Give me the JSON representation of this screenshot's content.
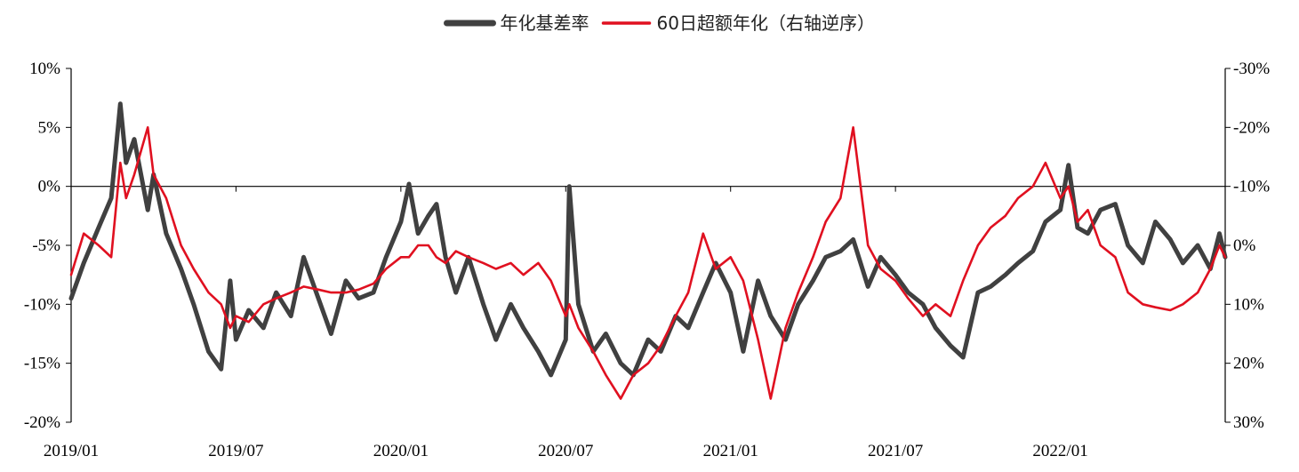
{
  "chart_data": {
    "type": "line",
    "title": "",
    "xlabel": "",
    "ylabel": "",
    "legend": {
      "position": "top-center",
      "entries": [
        "年化基差率",
        "60日超额年化（右轴逆序）"
      ]
    },
    "x_ticks": [
      "2019/01",
      "2019/07",
      "2020/01",
      "2020/07",
      "2021/01",
      "2021/07",
      "2022/01"
    ],
    "y_left": {
      "ticks": [
        "10%",
        "5%",
        "0%",
        "-5%",
        "-10%",
        "-15%",
        "-20%"
      ],
      "min": -20,
      "max": 10,
      "unit": "%"
    },
    "y_right": {
      "ticks": [
        "-30%",
        "-20%",
        "-10%",
        "0%",
        "10%",
        "20%",
        "30%"
      ],
      "min": -30,
      "max": 30,
      "inverted": true,
      "unit": "%"
    },
    "grid": false,
    "series": [
      {
        "name": "年化基差率",
        "axis": "left",
        "color": "#404040",
        "points": [
          [
            "2019/01",
            -9.5
          ],
          [
            "2019/01/15",
            -6.5
          ],
          [
            "2019/02",
            -3.5
          ],
          [
            "2019/02/15",
            -1.0
          ],
          [
            "2019/02/25",
            7.0
          ],
          [
            "2019/03",
            2.0
          ],
          [
            "2019/03/10",
            4.0
          ],
          [
            "2019/03/25",
            -2.0
          ],
          [
            "2019/04",
            1.0
          ],
          [
            "2019/04/15",
            -4.0
          ],
          [
            "2019/05",
            -7.0
          ],
          [
            "2019/05/15",
            -10.0
          ],
          [
            "2019/06",
            -14.0
          ],
          [
            "2019/06/15",
            -15.5
          ],
          [
            "2019/06/25",
            -8.0
          ],
          [
            "2019/07",
            -13.0
          ],
          [
            "2019/07/15",
            -10.5
          ],
          [
            "2019/08",
            -12.0
          ],
          [
            "2019/08/15",
            -9.0
          ],
          [
            "2019/09",
            -11.0
          ],
          [
            "2019/09/15",
            -6.0
          ],
          [
            "2019/10",
            -9.5
          ],
          [
            "2019/10/15",
            -12.5
          ],
          [
            "2019/11",
            -8.0
          ],
          [
            "2019/11/15",
            -9.5
          ],
          [
            "2019/12",
            -9.0
          ],
          [
            "2019/12/15",
            -6.0
          ],
          [
            "2020/01",
            -3.0
          ],
          [
            "2020/01/10",
            0.2
          ],
          [
            "2020/01/20",
            -4.0
          ],
          [
            "2020/02",
            -2.5
          ],
          [
            "2020/02/10",
            -1.5
          ],
          [
            "2020/02/20",
            -6.0
          ],
          [
            "2020/03",
            -9.0
          ],
          [
            "2020/03/15",
            -6.0
          ],
          [
            "2020/04",
            -10.0
          ],
          [
            "2020/04/15",
            -13.0
          ],
          [
            "2020/05",
            -10.0
          ],
          [
            "2020/05/15",
            -12.0
          ],
          [
            "2020/06",
            -14.0
          ],
          [
            "2020/06/15",
            -16.0
          ],
          [
            "2020/07",
            -13.0
          ],
          [
            "2020/07/05",
            0.0
          ],
          [
            "2020/07/15",
            -10.0
          ],
          [
            "2020/08",
            -14.0
          ],
          [
            "2020/08/15",
            -12.5
          ],
          [
            "2020/09",
            -15.0
          ],
          [
            "2020/09/15",
            -16.0
          ],
          [
            "2020/10",
            -13.0
          ],
          [
            "2020/10/15",
            -14.0
          ],
          [
            "2020/11",
            -11.0
          ],
          [
            "2020/11/15",
            -12.0
          ],
          [
            "2020/12",
            -9.0
          ],
          [
            "2020/12/15",
            -6.5
          ],
          [
            "2021/01",
            -9.0
          ],
          [
            "2021/01/15",
            -14.0
          ],
          [
            "2021/02",
            -8.0
          ],
          [
            "2021/02/15",
            -11.0
          ],
          [
            "2021/03",
            -13.0
          ],
          [
            "2021/03/15",
            -10.0
          ],
          [
            "2021/04",
            -8.0
          ],
          [
            "2021/04/15",
            -6.0
          ],
          [
            "2021/05",
            -5.5
          ],
          [
            "2021/05/15",
            -4.5
          ],
          [
            "2021/06",
            -8.5
          ],
          [
            "2021/06/15",
            -6.0
          ],
          [
            "2021/07",
            -7.5
          ],
          [
            "2021/07/15",
            -9.0
          ],
          [
            "2021/08",
            -10.0
          ],
          [
            "2021/08/15",
            -12.0
          ],
          [
            "2021/09",
            -13.5
          ],
          [
            "2021/09/15",
            -14.5
          ],
          [
            "2021/10",
            -9.0
          ],
          [
            "2021/10/15",
            -8.5
          ],
          [
            "2021/11",
            -7.5
          ],
          [
            "2021/11/15",
            -6.5
          ],
          [
            "2021/12",
            -5.5
          ],
          [
            "2021/12/15",
            -3.0
          ],
          [
            "2022/01",
            -2.0
          ],
          [
            "2022/01/10",
            1.8
          ],
          [
            "2022/01/20",
            -3.5
          ],
          [
            "2022/02",
            -4.0
          ],
          [
            "2022/02/15",
            -2.0
          ],
          [
            "2022/03",
            -1.5
          ],
          [
            "2022/03/15",
            -5.0
          ],
          [
            "2022/04",
            -6.5
          ],
          [
            "2022/04/15",
            -3.0
          ],
          [
            "2022/05",
            -4.5
          ],
          [
            "2022/05/15",
            -6.5
          ],
          [
            "2022/06",
            -5.0
          ],
          [
            "2022/06/15",
            -7.0
          ],
          [
            "2022/06/25",
            -4.0
          ],
          [
            "2022/07",
            -6.0
          ]
        ]
      },
      {
        "name": "60日超额年化（右轴逆序）",
        "axis": "right",
        "color": "#e01020",
        "points": [
          [
            "2019/01",
            5.0
          ],
          [
            "2019/01/15",
            -2.0
          ],
          [
            "2019/02",
            0.0
          ],
          [
            "2019/02/15",
            2.0
          ],
          [
            "2019/02/25",
            -14.0
          ],
          [
            "2019/03",
            -8.0
          ],
          [
            "2019/03/10",
            -12.0
          ],
          [
            "2019/03/25",
            -20.0
          ],
          [
            "2019/04",
            -12.0
          ],
          [
            "2019/04/15",
            -8.0
          ],
          [
            "2019/05",
            0.0
          ],
          [
            "2019/05/15",
            4.0
          ],
          [
            "2019/06",
            8.0
          ],
          [
            "2019/06/15",
            10.0
          ],
          [
            "2019/06/25",
            14.0
          ],
          [
            "2019/07",
            12.0
          ],
          [
            "2019/07/15",
            13.0
          ],
          [
            "2019/08",
            10.0
          ],
          [
            "2019/08/15",
            9.0
          ],
          [
            "2019/09",
            8.0
          ],
          [
            "2019/09/15",
            7.0
          ],
          [
            "2019/10",
            7.5
          ],
          [
            "2019/10/15",
            8.0
          ],
          [
            "2019/11",
            8.0
          ],
          [
            "2019/11/15",
            7.5
          ],
          [
            "2019/12",
            6.5
          ],
          [
            "2019/12/15",
            4.0
          ],
          [
            "2020/01",
            2.0
          ],
          [
            "2020/01/10",
            2.0
          ],
          [
            "2020/01/20",
            0.0
          ],
          [
            "2020/02",
            0.0
          ],
          [
            "2020/02/10",
            2.0
          ],
          [
            "2020/02/20",
            3.0
          ],
          [
            "2020/03",
            1.0
          ],
          [
            "2020/03/15",
            2.0
          ],
          [
            "2020/04",
            3.0
          ],
          [
            "2020/04/15",
            4.0
          ],
          [
            "2020/05",
            3.0
          ],
          [
            "2020/05/15",
            5.0
          ],
          [
            "2020/06",
            3.0
          ],
          [
            "2020/06/15",
            6.0
          ],
          [
            "2020/07",
            12.0
          ],
          [
            "2020/07/05",
            10.0
          ],
          [
            "2020/07/15",
            14.0
          ],
          [
            "2020/08",
            18.0
          ],
          [
            "2020/08/15",
            22.0
          ],
          [
            "2020/09",
            26.0
          ],
          [
            "2020/09/15",
            22.0
          ],
          [
            "2020/10",
            20.0
          ],
          [
            "2020/10/15",
            17.0
          ],
          [
            "2020/11",
            12.0
          ],
          [
            "2020/11/15",
            8.0
          ],
          [
            "2020/12",
            -2.0
          ],
          [
            "2020/12/15",
            4.0
          ],
          [
            "2021/01",
            2.0
          ],
          [
            "2021/01/15",
            6.0
          ],
          [
            "2021/02",
            16.0
          ],
          [
            "2021/02/15",
            26.0
          ],
          [
            "2021/03",
            14.0
          ],
          [
            "2021/03/15",
            8.0
          ],
          [
            "2021/04",
            2.0
          ],
          [
            "2021/04/15",
            -4.0
          ],
          [
            "2021/05",
            -8.0
          ],
          [
            "2021/05/15",
            -20.0
          ],
          [
            "2021/06",
            0.0
          ],
          [
            "2021/06/15",
            4.0
          ],
          [
            "2021/07",
            6.0
          ],
          [
            "2021/07/15",
            9.0
          ],
          [
            "2021/08",
            12.0
          ],
          [
            "2021/08/15",
            10.0
          ],
          [
            "2021/09",
            12.0
          ],
          [
            "2021/09/15",
            6.0
          ],
          [
            "2021/10",
            0.0
          ],
          [
            "2021/10/15",
            -3.0
          ],
          [
            "2021/11",
            -5.0
          ],
          [
            "2021/11/15",
            -8.0
          ],
          [
            "2021/12",
            -10.0
          ],
          [
            "2021/12/15",
            -14.0
          ],
          [
            "2022/01",
            -8.0
          ],
          [
            "2022/01/10",
            -10.0
          ],
          [
            "2022/01/20",
            -4.0
          ],
          [
            "2022/02",
            -6.0
          ],
          [
            "2022/02/15",
            0.0
          ],
          [
            "2022/03",
            2.0
          ],
          [
            "2022/03/15",
            8.0
          ],
          [
            "2022/04",
            10.0
          ],
          [
            "2022/04/15",
            10.5
          ],
          [
            "2022/05",
            11.0
          ],
          [
            "2022/05/15",
            10.0
          ],
          [
            "2022/06",
            8.0
          ],
          [
            "2022/06/15",
            4.0
          ],
          [
            "2022/06/25",
            0.0
          ],
          [
            "2022/07",
            2.0
          ]
        ]
      }
    ]
  }
}
